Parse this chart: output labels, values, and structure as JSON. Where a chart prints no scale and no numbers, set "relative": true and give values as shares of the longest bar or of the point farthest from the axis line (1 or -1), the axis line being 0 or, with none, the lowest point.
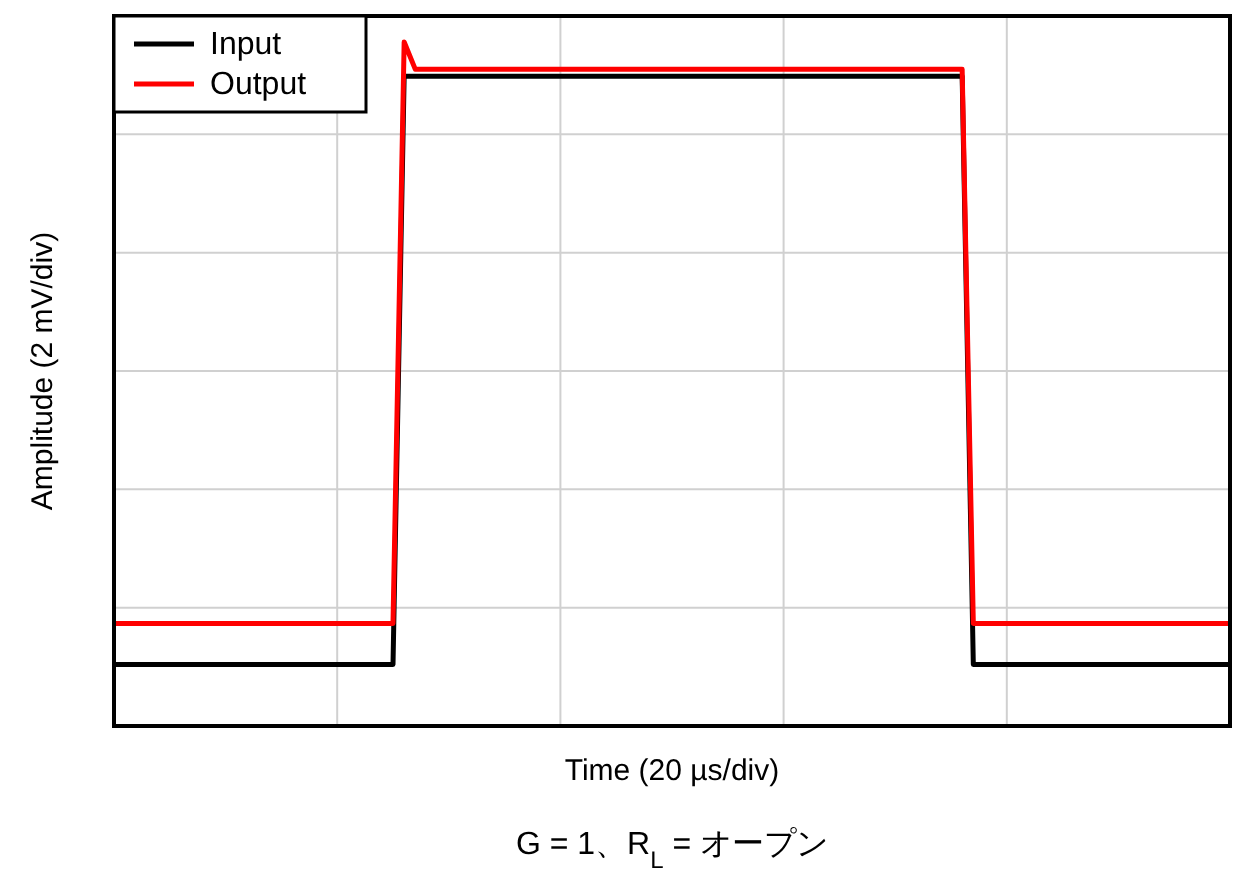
{
  "chart_data": {
    "type": "line",
    "relative": true,
    "xlabel": "Time (20 µs/div)",
    "ylabel": "Amplitude (2 mV/div)",
    "annotations": [
      "G = 1、R$_{L}$ = オープン"
    ],
    "categories": [
      null,
      null,
      null,
      null,
      null,
      null,
      null,
      null,
      null,
      null,
      null,
      null,
      null,
      null,
      null,
      null,
      null,
      null,
      null,
      null,
      null,
      null,
      null,
      null,
      null,
      null,
      null,
      null,
      null,
      null,
      null,
      null,
      null,
      null,
      null,
      null,
      null,
      null,
      null,
      null,
      null,
      null,
      null,
      null,
      null,
      null,
      null,
      null,
      null,
      null,
      null,
      null,
      null,
      null,
      null,
      null,
      null,
      null,
      null,
      null,
      null,
      null,
      null,
      null,
      null,
      null,
      null,
      null,
      null,
      null,
      null,
      null,
      null,
      null,
      null,
      null,
      null,
      null,
      null,
      null,
      null,
      null,
      null,
      null,
      null,
      null,
      null,
      null,
      null,
      null,
      null,
      null,
      null,
      null,
      null,
      null,
      null,
      null,
      null,
      null,
      null
    ],
    "series": [
      {
        "name": "Input",
        "color": "#000000",
        "values": [
          0.09,
          0.09,
          0.09,
          0.09,
          0.09,
          0.09,
          0.09,
          0.09,
          0.09,
          0.09,
          0.09,
          0.09,
          0.09,
          0.09,
          0.09,
          0.09,
          0.09,
          0.09,
          0.09,
          0.09,
          0.09,
          0.09,
          0.09,
          0.09,
          0.09,
          0.09,
          0.95,
          0.95,
          0.95,
          0.95,
          0.95,
          0.95,
          0.95,
          0.95,
          0.95,
          0.95,
          0.95,
          0.95,
          0.95,
          0.95,
          0.95,
          0.95,
          0.95,
          0.95,
          0.95,
          0.95,
          0.95,
          0.95,
          0.95,
          0.95,
          0.95,
          0.95,
          0.95,
          0.95,
          0.95,
          0.95,
          0.95,
          0.95,
          0.95,
          0.95,
          0.95,
          0.95,
          0.95,
          0.95,
          0.95,
          0.95,
          0.95,
          0.95,
          0.95,
          0.95,
          0.95,
          0.95,
          0.95,
          0.95,
          0.95,
          0.95,
          0.95,
          0.09,
          0.09,
          0.09,
          0.09,
          0.09,
          0.09,
          0.09,
          0.09,
          0.09,
          0.09,
          0.09,
          0.09,
          0.09,
          0.09,
          0.09,
          0.09,
          0.09,
          0.09,
          0.09,
          0.09,
          0.09,
          0.09,
          0.09,
          0.09
        ]
      },
      {
        "name": "Output",
        "color": "#ff0000",
        "values": [
          0.15,
          0.15,
          0.15,
          0.15,
          0.15,
          0.15,
          0.15,
          0.15,
          0.15,
          0.15,
          0.15,
          0.15,
          0.15,
          0.15,
          0.15,
          0.15,
          0.15,
          0.15,
          0.15,
          0.15,
          0.15,
          0.15,
          0.15,
          0.15,
          0.15,
          0.15,
          1,
          0.96,
          0.96,
          0.96,
          0.96,
          0.96,
          0.96,
          0.96,
          0.96,
          0.96,
          0.96,
          0.96,
          0.96,
          0.96,
          0.96,
          0.96,
          0.96,
          0.96,
          0.96,
          0.96,
          0.96,
          0.96,
          0.96,
          0.96,
          0.96,
          0.96,
          0.96,
          0.96,
          0.96,
          0.96,
          0.96,
          0.96,
          0.96,
          0.96,
          0.96,
          0.96,
          0.96,
          0.96,
          0.96,
          0.96,
          0.96,
          0.96,
          0.96,
          0.96,
          0.96,
          0.96,
          0.96,
          0.96,
          0.96,
          0.96,
          0.96,
          0.15,
          0.15,
          0.15,
          0.15,
          0.15,
          0.15,
          0.15,
          0.15,
          0.15,
          0.15,
          0.15,
          0.15,
          0.15,
          0.15,
          0.15,
          0.15,
          0.15,
          0.15,
          0.15,
          0.15,
          0.15,
          0.15,
          0.15,
          0.15
        ]
      }
    ],
    "grid": true,
    "legend": "top left",
    "line_style": "solid"
  }
}
